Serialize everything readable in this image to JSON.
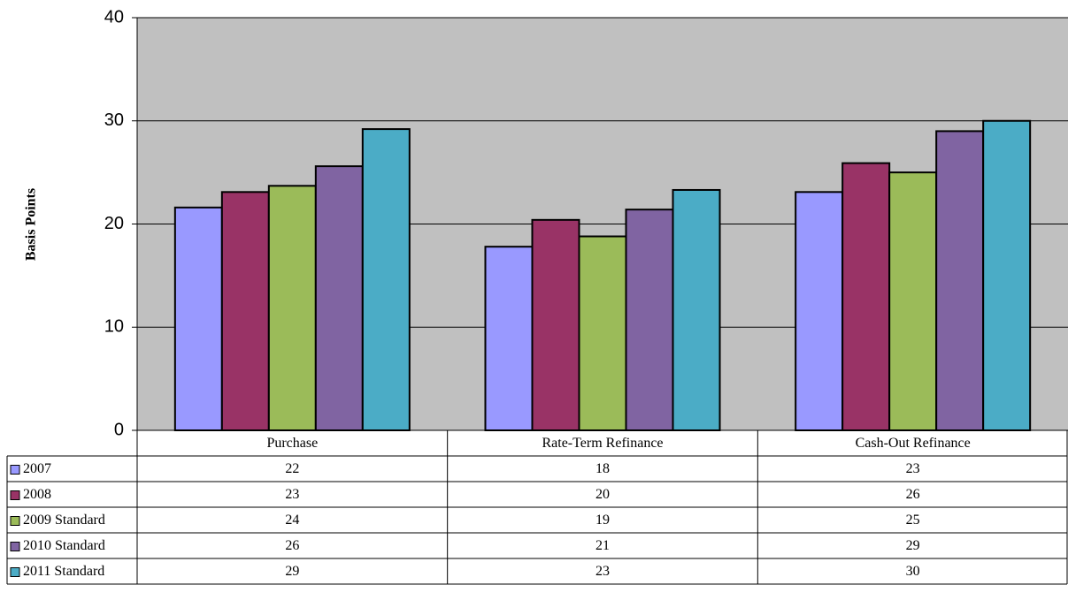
{
  "chart_data": {
    "type": "bar",
    "y_label": "Basis Points",
    "categories": [
      "Purchase",
      "Rate-Term Refinance",
      "Cash-Out Refinance"
    ],
    "series": [
      {
        "name": "2007",
        "color": "#9999ff",
        "values": [
          21.6,
          17.8,
          23.1
        ],
        "value_labels": [
          "22",
          "18",
          "23"
        ]
      },
      {
        "name": "2008",
        "color": "#993366",
        "values": [
          23.1,
          20.4,
          25.9
        ],
        "value_labels": [
          "23",
          "20",
          "26"
        ]
      },
      {
        "name": "2009 Standard",
        "color": "#9bbb59",
        "values": [
          23.7,
          18.8,
          25.0
        ],
        "value_labels": [
          "24",
          "19",
          "25"
        ]
      },
      {
        "name": "2010 Standard",
        "color": "#8064a2",
        "values": [
          25.6,
          21.4,
          29.0
        ],
        "value_labels": [
          "26",
          "21",
          "29"
        ]
      },
      {
        "name": "2011 Standard",
        "color": "#4bacc6",
        "values": [
          29.2,
          23.3,
          30.0
        ],
        "value_labels": [
          "29",
          "23",
          "30"
        ]
      }
    ],
    "ylim": [
      0,
      40
    ],
    "yticks": [
      0,
      10,
      20,
      30,
      40
    ],
    "grid": true
  }
}
